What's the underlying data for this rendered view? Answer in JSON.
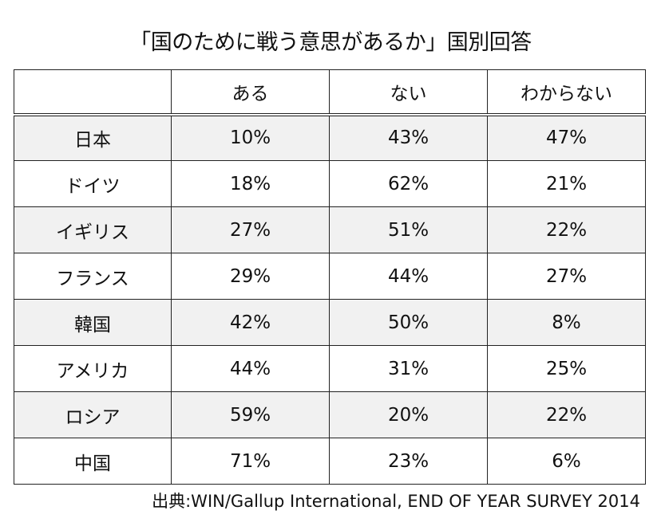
{
  "title": "「国のために戦う意思があるか」国別回答",
  "source": "出典:WIN/Gallup International, END OF YEAR SURVEY 2014",
  "chart_data": {
    "type": "table",
    "title": "「国のために戦う意思があるか」国別回答",
    "columns": [
      "",
      "ある",
      "ない",
      "わからない"
    ],
    "rows": [
      {
        "country": "日本",
        "values": [
          "10%",
          "43%",
          "47%"
        ]
      },
      {
        "country": "ドイツ",
        "values": [
          "18%",
          "62%",
          "21%"
        ]
      },
      {
        "country": "イギリス",
        "values": [
          "27%",
          "51%",
          "22%"
        ]
      },
      {
        "country": "フランス",
        "values": [
          "29%",
          "44%",
          "27%"
        ]
      },
      {
        "country": "韓国",
        "values": [
          "42%",
          "50%",
          "8%"
        ]
      },
      {
        "country": "アメリカ",
        "values": [
          "44%",
          "31%",
          "25%"
        ]
      },
      {
        "country": "ロシア",
        "values": [
          "59%",
          "20%",
          "22%"
        ]
      },
      {
        "country": "中国",
        "values": [
          "71%",
          "23%",
          "6%"
        ]
      }
    ]
  }
}
